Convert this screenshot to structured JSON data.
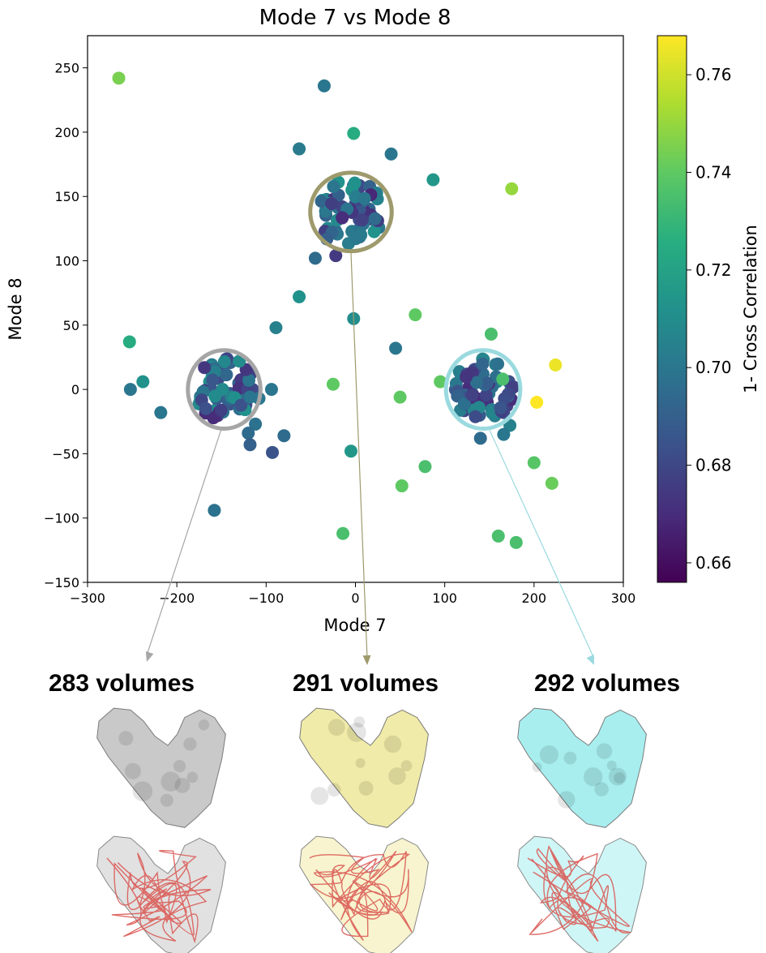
{
  "chart_data": {
    "type": "scatter",
    "title": "Mode 7 vs Mode 8",
    "xlabel": "Mode 7",
    "ylabel": "Mode 8",
    "xlim": [
      -300,
      300
    ],
    "ylim": [
      -150,
      275
    ],
    "xticks": [
      -300,
      -200,
      -100,
      0,
      100,
      200,
      300
    ],
    "yticks": [
      -150,
      -100,
      -50,
      0,
      50,
      100,
      150,
      200,
      250
    ],
    "grid": false,
    "colorbar": {
      "label": "1- Cross Correlation",
      "colormap": "viridis",
      "range": [
        0.656,
        0.768
      ],
      "ticks": [
        0.66,
        0.68,
        0.7,
        0.72,
        0.74,
        0.76
      ]
    },
    "points": [
      {
        "x": -265,
        "y": 242,
        "c": 0.745
      },
      {
        "x": -253,
        "y": 37,
        "c": 0.725
      },
      {
        "x": -238,
        "y": 6,
        "c": 0.712
      },
      {
        "x": -252,
        "y": 0,
        "c": 0.7
      },
      {
        "x": -218,
        "y": -18,
        "c": 0.7
      },
      {
        "x": -158,
        "y": -94,
        "c": 0.698
      },
      {
        "x": -130,
        "y": 22,
        "c": 0.71
      },
      {
        "x": -118,
        "y": -6,
        "c": 0.7
      },
      {
        "x": -108,
        "y": -7,
        "c": 0.7
      },
      {
        "x": -112,
        "y": -27,
        "c": 0.698
      },
      {
        "x": -120,
        "y": -34,
        "c": 0.695
      },
      {
        "x": -118,
        "y": -43,
        "c": 0.69
      },
      {
        "x": -94,
        "y": 0,
        "c": 0.7
      },
      {
        "x": -80,
        "y": -36,
        "c": 0.695
      },
      {
        "x": -93,
        "y": -49,
        "c": 0.685
      },
      {
        "x": -89,
        "y": 48,
        "c": 0.705
      },
      {
        "x": -63,
        "y": 72,
        "c": 0.712
      },
      {
        "x": -63,
        "y": 187,
        "c": 0.702
      },
      {
        "x": -45,
        "y": 102,
        "c": 0.695
      },
      {
        "x": -35,
        "y": 236,
        "c": 0.7
      },
      {
        "x": -22,
        "y": 104,
        "c": 0.675
      },
      {
        "x": -32,
        "y": 117,
        "c": 0.69
      },
      {
        "x": -2,
        "y": 199,
        "c": 0.725
      },
      {
        "x": 40,
        "y": 183,
        "c": 0.7
      },
      {
        "x": -2,
        "y": 55,
        "c": 0.71
      },
      {
        "x": 87,
        "y": 163,
        "c": 0.715
      },
      {
        "x": 175,
        "y": 156,
        "c": 0.75
      },
      {
        "x": 67,
        "y": 58,
        "c": 0.74
      },
      {
        "x": 45,
        "y": 32,
        "c": 0.7
      },
      {
        "x": -25,
        "y": 4,
        "c": 0.74
      },
      {
        "x": 50,
        "y": -6,
        "c": 0.74
      },
      {
        "x": 95,
        "y": 6,
        "c": 0.74
      },
      {
        "x": -5,
        "y": -48,
        "c": 0.715
      },
      {
        "x": 78,
        "y": -60,
        "c": 0.735
      },
      {
        "x": 52,
        "y": -75,
        "c": 0.74
      },
      {
        "x": -14,
        "y": -112,
        "c": 0.735
      },
      {
        "x": 152,
        "y": 43,
        "c": 0.735
      },
      {
        "x": 165,
        "y": 8,
        "c": 0.735
      },
      {
        "x": 224,
        "y": 19,
        "c": 0.765
      },
      {
        "x": 203,
        "y": -10,
        "c": 0.768
      },
      {
        "x": 173,
        "y": -28,
        "c": 0.705
      },
      {
        "x": 166,
        "y": -35,
        "c": 0.7
      },
      {
        "x": 140,
        "y": -38,
        "c": 0.695
      },
      {
        "x": 200,
        "y": -57,
        "c": 0.738
      },
      {
        "x": 220,
        "y": -73,
        "c": 0.742
      },
      {
        "x": 160,
        "y": -114,
        "c": 0.735
      },
      {
        "x": 180,
        "y": -119,
        "c": 0.735
      }
    ],
    "clusters": [
      {
        "label": "283 volumes",
        "center": [
          -147,
          0
        ],
        "radius_x": 37,
        "radius_y": 28,
        "n_points": 55,
        "ring_color": "#a6a6a6",
        "label_color": "#a6a6a6",
        "fill_color": "#c9c9c9"
      },
      {
        "label": "291 volumes",
        "center": [
          -5,
          138
        ],
        "radius_x": 42,
        "radius_y": 28,
        "n_points": 60,
        "ring_color": "#9e9a6c",
        "label_color": "#f1efb5",
        "fill_color": "#f0eba8"
      },
      {
        "label": "292 volumes",
        "center": [
          143,
          0
        ],
        "radius_x": 38,
        "radius_y": 28,
        "n_points": 60,
        "ring_color": "#9adadf",
        "label_color": "#a7f0f2",
        "fill_color": "#a8eeef"
      }
    ]
  }
}
